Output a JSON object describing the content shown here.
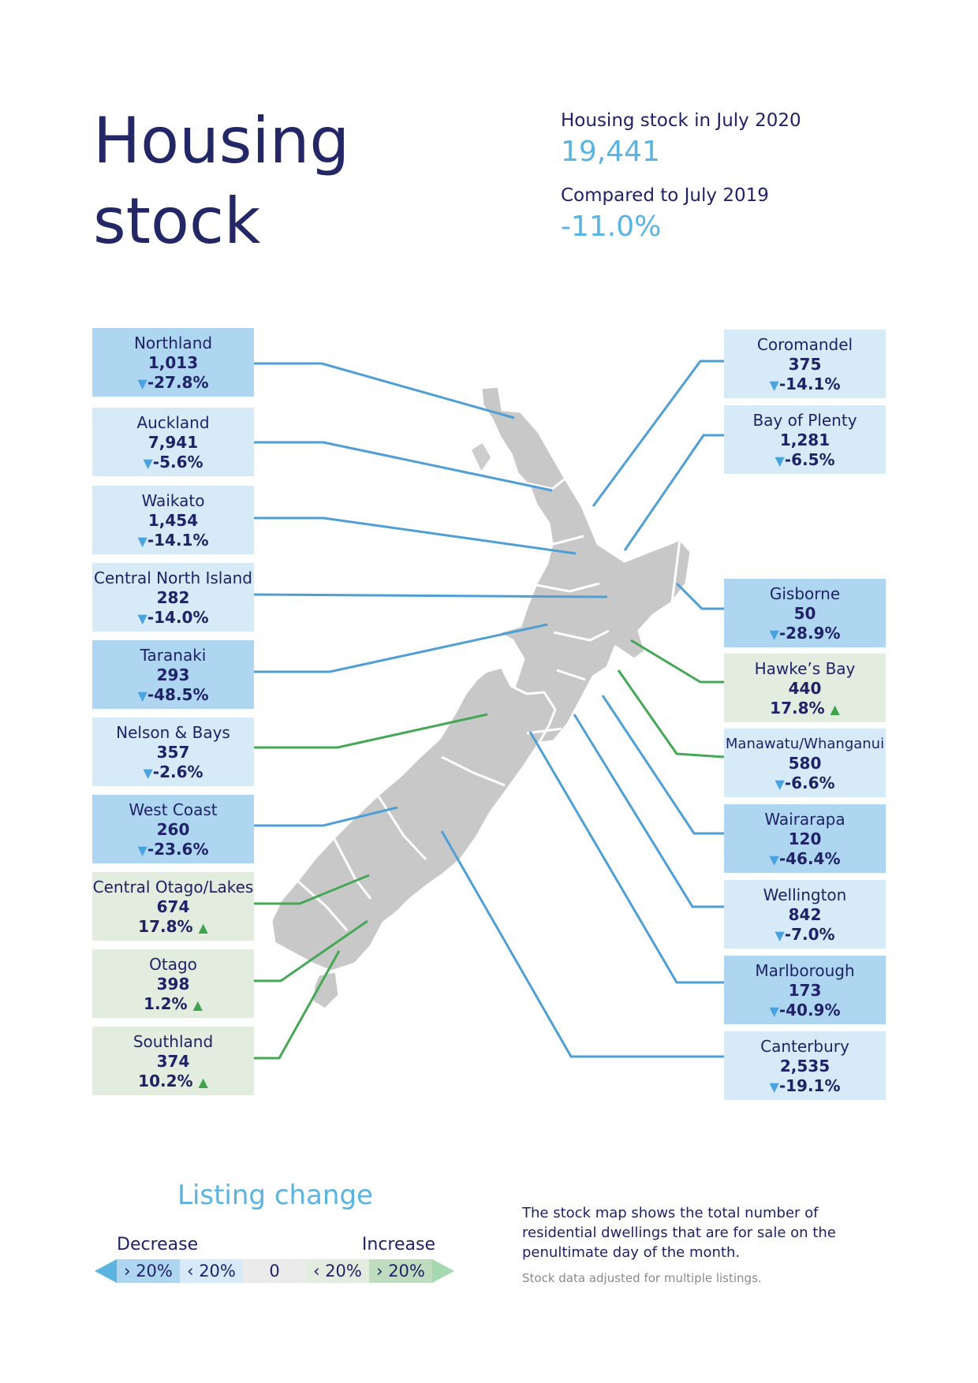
{
  "title": {
    "line1": "Housing",
    "line2": "stock"
  },
  "summary": {
    "label1": "Housing stock in July 2020",
    "value1": "19,441",
    "label2": "Compared to July 2019",
    "value2": "-11.0%"
  },
  "colors": {
    "decrease_strong": "#aed6f1",
    "decrease_mild": "#d6eaf8",
    "neutral": "#ebebeb",
    "increase_mild": "#e2ecdf",
    "increase_strong": "#bfdcbf",
    "blue_line": "#4f9fd5",
    "green_line": "#46a857",
    "map_fill": "#c8c8c8"
  },
  "regions": {
    "northland": {
      "name": "Northland",
      "stock": "1,013",
      "change": "-27.8%",
      "direction": "down"
    },
    "auckland": {
      "name": "Auckland",
      "stock": "7,941",
      "change": "-5.6%",
      "direction": "down"
    },
    "waikato": {
      "name": "Waikato",
      "stock": "1,454",
      "change": "-14.1%",
      "direction": "down"
    },
    "central_north_island": {
      "name": "Central North Island",
      "stock": "282",
      "change": "-14.0%",
      "direction": "down"
    },
    "taranaki": {
      "name": "Taranaki",
      "stock": "293",
      "change": "-48.5%",
      "direction": "down"
    },
    "nelson_bays": {
      "name": "Nelson & Bays",
      "stock": "357",
      "change": "-2.6%",
      "direction": "down"
    },
    "west_coast": {
      "name": "West Coast",
      "stock": "260",
      "change": "-23.6%",
      "direction": "down"
    },
    "central_otago_lakes": {
      "name": "Central Otago/Lakes",
      "stock": "674",
      "change": "17.8%",
      "direction": "up"
    },
    "otago": {
      "name": "Otago",
      "stock": "398",
      "change": "1.2%",
      "direction": "up"
    },
    "southland": {
      "name": "Southland",
      "stock": "374",
      "change": "10.2%",
      "direction": "up"
    },
    "coromandel": {
      "name": "Coromandel",
      "stock": "375",
      "change": "-14.1%",
      "direction": "down"
    },
    "bay_of_plenty": {
      "name": "Bay of Plenty",
      "stock": "1,281",
      "change": "-6.5%",
      "direction": "down"
    },
    "gisborne": {
      "name": "Gisborne",
      "stock": "50",
      "change": "-28.9%",
      "direction": "down"
    },
    "hawkes_bay": {
      "name": "Hawke’s Bay",
      "stock": "440",
      "change": "17.8%",
      "direction": "up"
    },
    "manawatu_whanganui": {
      "name": "Manawatu/Whanganui",
      "stock": "580",
      "change": "-6.6%",
      "direction": "down"
    },
    "wairarapa": {
      "name": "Wairarapa",
      "stock": "120",
      "change": "-46.4%",
      "direction": "down"
    },
    "wellington": {
      "name": "Wellington",
      "stock": "842",
      "change": "-7.0%",
      "direction": "down"
    },
    "marlborough": {
      "name": "Marlborough",
      "stock": "173",
      "change": "-40.9%",
      "direction": "down"
    },
    "canterbury": {
      "name": "Canterbury",
      "stock": "2,535",
      "change": "-19.1%",
      "direction": "down"
    }
  },
  "legend": {
    "title": "Listing change",
    "decrease": "Decrease",
    "increase": "Increase",
    "seg1": "› 20%",
    "seg2": "‹ 20%",
    "seg3": "0",
    "seg4": "‹ 20%",
    "seg5": "› 20%"
  },
  "note": {
    "text": "The stock map shows the total number of residential dwellings that are for sale on the penultimate day of the month.",
    "small": "Stock data adjusted for multiple listings."
  },
  "icons": {
    "down": "▼",
    "up": "▲"
  }
}
